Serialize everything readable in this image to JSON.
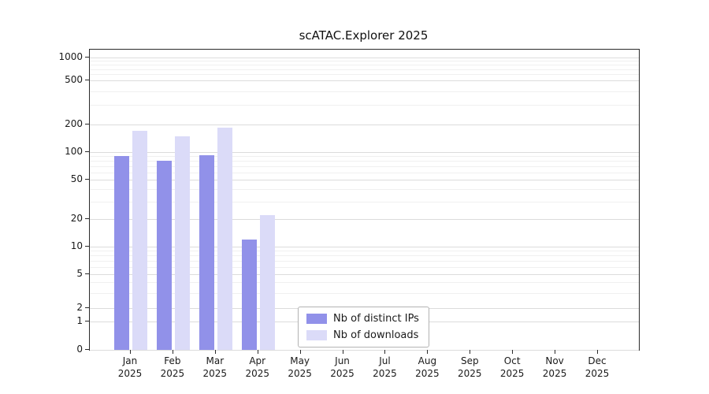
{
  "chart_data": {
    "type": "bar",
    "title": "scATAC.Explorer 2025",
    "categories": [
      "Jan",
      "Feb",
      "Mar",
      "Apr",
      "May",
      "Jun",
      "Jul",
      "Aug",
      "Sep",
      "Oct",
      "Nov",
      "Dec"
    ],
    "year_label": "2025",
    "series": [
      {
        "name": "Nb of distinct IPs",
        "color": "#9191e9",
        "values": [
          90,
          80,
          92,
          12,
          0,
          0,
          0,
          0,
          0,
          0,
          0,
          0
        ]
      },
      {
        "name": "Nb of downloads",
        "color": "#dbdbf8",
        "values": [
          170,
          150,
          185,
          22,
          0,
          0,
          0,
          0,
          0,
          0,
          0,
          0
        ]
      }
    ],
    "yticks": [
      0,
      1,
      2,
      5,
      10,
      20,
      50,
      100,
      200,
      500,
      1000
    ],
    "minor_gridline_values": [
      3,
      4,
      6,
      7,
      8,
      9,
      30,
      40,
      60,
      70,
      80,
      90,
      300,
      400,
      600,
      700,
      800,
      900
    ],
    "scale": "symlog",
    "ylim": [
      0,
      1000
    ],
    "grid": true,
    "legend_position": "inside-bottom-center",
    "xlabel": "",
    "ylabel": ""
  }
}
